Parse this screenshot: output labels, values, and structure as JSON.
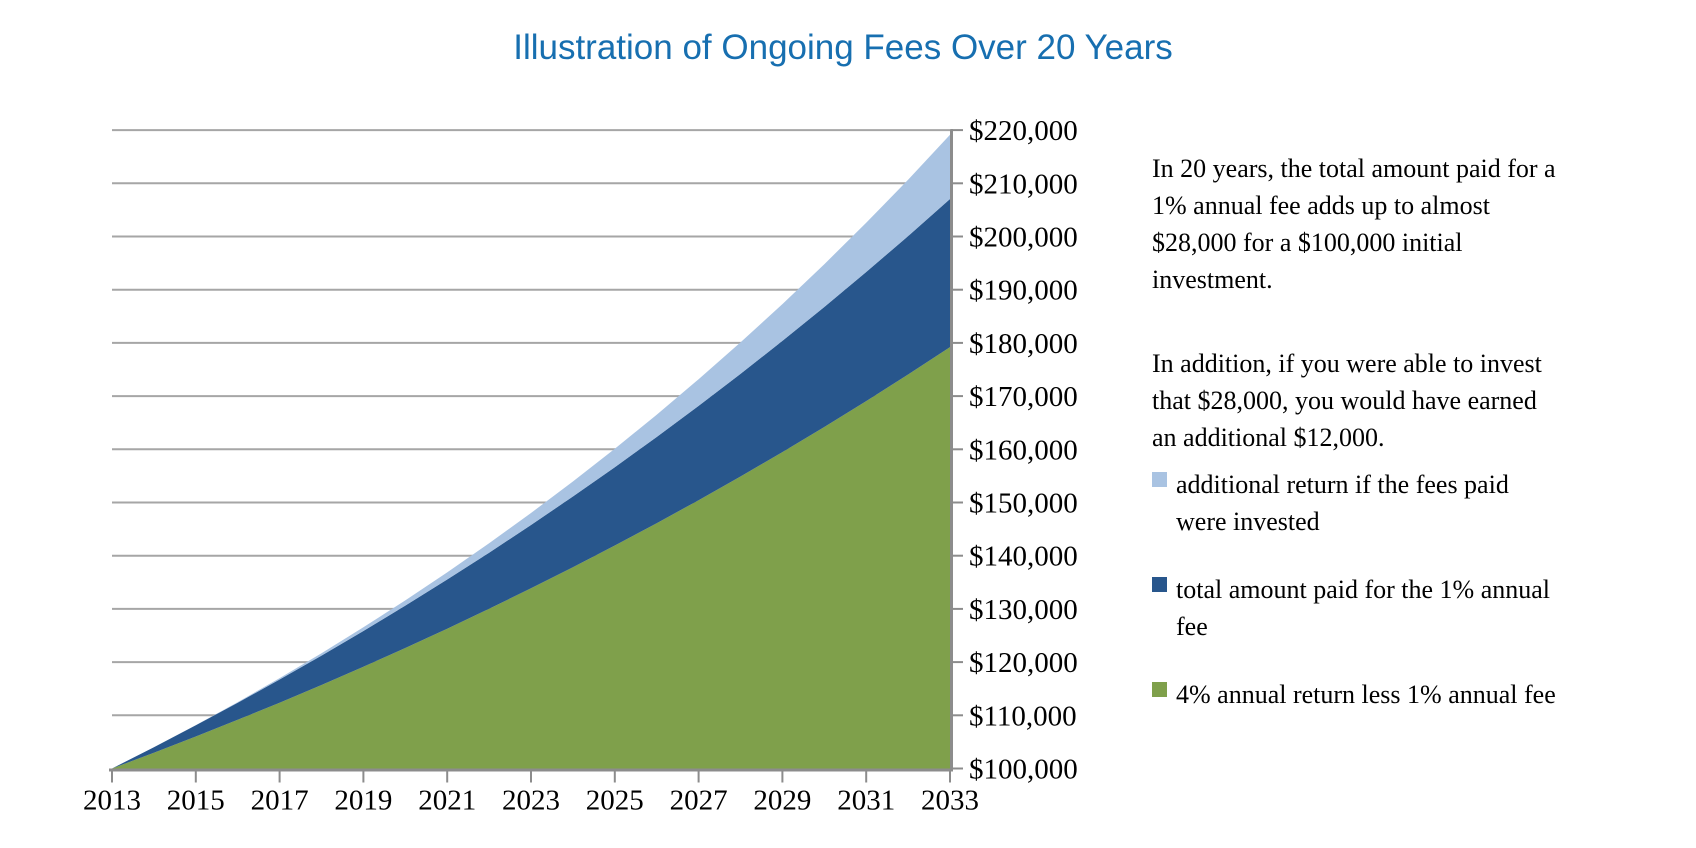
{
  "chart_data": {
    "type": "area",
    "title": "Illustration of Ongoing Fees Over 20 Years",
    "xlabel": "",
    "ylabel": "",
    "stacking": "values are cumulative stack tops, dollars",
    "x_years": [
      2013,
      2014,
      2015,
      2016,
      2017,
      2018,
      2019,
      2020,
      2021,
      2022,
      2023,
      2024,
      2025,
      2026,
      2027,
      2028,
      2029,
      2030,
      2031,
      2032,
      2033
    ],
    "x_tick_labels": [
      "2013",
      "2015",
      "2017",
      "2019",
      "2021",
      "2023",
      "2025",
      "2027",
      "2029",
      "2031",
      "2033"
    ],
    "ylim": [
      100000,
      220000
    ],
    "y_ticks": [
      100000,
      110000,
      120000,
      130000,
      140000,
      150000,
      160000,
      170000,
      180000,
      190000,
      200000,
      210000,
      220000
    ],
    "y_tick_labels": [
      "$100,000",
      "$110,000",
      "$120,000",
      "$130,000",
      "$140,000",
      "$150,000",
      "$160,000",
      "$170,000",
      "$180,000",
      "$190,000",
      "$200,000",
      "$210,000",
      "$220,000"
    ],
    "grid": true,
    "legend_position": "right",
    "series": [
      {
        "name": "4% annual return less 1% annual fee",
        "legend_label": "4% annual return less 1% annual fee",
        "color": "#7FA04B",
        "stack_top_values": [
          100000,
          102960,
          106008,
          109145,
          112376,
          115702,
          119127,
          122653,
          126284,
          130022,
          133871,
          137833,
          141913,
          146114,
          150439,
          154892,
          159476,
          164197,
          169057,
          174061,
          179214
        ]
      },
      {
        "name": "total amount paid for the 1% annual fee",
        "legend_label": "total amount paid for the 1% annual\nfee",
        "color": "#28568C",
        "stack_top_values": [
          100000,
          104000,
          108118,
          112359,
          116725,
          121220,
          125848,
          130613,
          135519,
          140570,
          145771,
          151126,
          156639,
          162316,
          168160,
          174178,
          180374,
          186753,
          193321,
          200083,
          207045
        ]
      },
      {
        "name": "additional return if the fees paid were invested",
        "legend_label": "additional return if the fees paid\nwere invested",
        "color": "#A9C3E2",
        "stack_top_values": [
          100000,
          104000,
          108160,
          112486,
          116986,
          121665,
          126532,
          131593,
          136857,
          142331,
          148024,
          153945,
          160103,
          166507,
          173168,
          180094,
          187298,
          194790,
          202582,
          210685,
          219112
        ]
      }
    ],
    "colors": {
      "gridline": "#A6A6A6",
      "axis": "#8C8C8C",
      "title": "#176FB0"
    }
  },
  "panel": {
    "paragraphs": [
      "In 20 years, the total amount paid for a\n1% annual fee adds up to almost\n$28,000 for a $100,000 initial\ninvestment.",
      "In addition, if you were able to invest\nthat $28,000, you would have earned\nan additional $12,000."
    ]
  }
}
